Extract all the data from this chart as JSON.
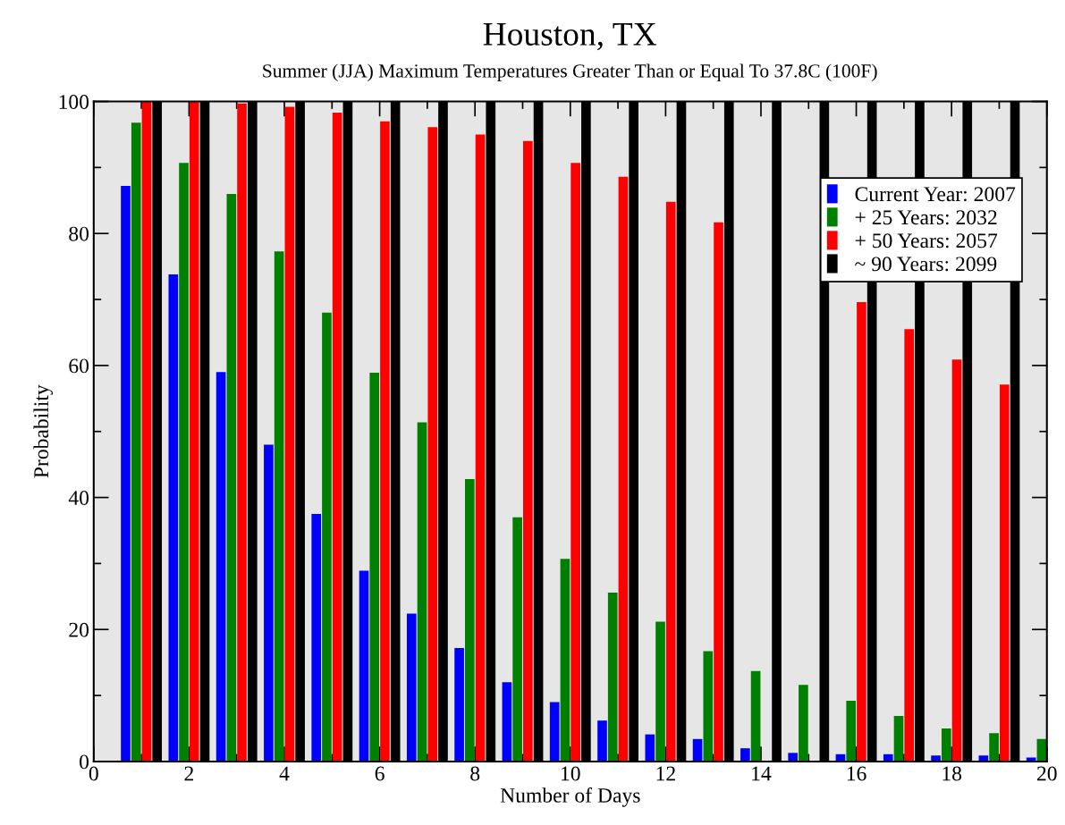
{
  "chart_data": {
    "type": "bar",
    "title": "Houston, TX",
    "subtitle": "Summer (JJA) Maximum Temperatures Greater Than or Equal To 37.8C (100F)",
    "xlabel": "Number of Days",
    "ylabel": "Probability",
    "x": [
      1,
      2,
      3,
      4,
      5,
      6,
      7,
      8,
      9,
      10,
      11,
      12,
      13,
      14,
      15,
      16,
      17,
      18,
      19,
      20
    ],
    "series": [
      {
        "name": "Current Year: 2007",
        "color": "#0000ff",
        "values": [
          87.2,
          73.8,
          59,
          48,
          37.5,
          28.9,
          22.4,
          17.2,
          12,
          9,
          6.2,
          4.1,
          3.4,
          2,
          1.3,
          1.1,
          1.1,
          0.9,
          0.9,
          0.6
        ]
      },
      {
        "name": "+ 25 Years: 2032",
        "color": "#008000",
        "values": [
          96.8,
          90.7,
          86,
          77.3,
          68,
          58.9,
          51.4,
          42.8,
          37,
          30.7,
          25.6,
          21.2,
          16.7,
          13.7,
          11.6,
          9.2,
          6.9,
          5,
          4.3,
          3.4
        ]
      },
      {
        "name": "+ 50 Years: 2057",
        "color": "#ff0000",
        "values": [
          100,
          100,
          99.7,
          99.2,
          98.3,
          97,
          96.1,
          95,
          94,
          90.7,
          88.6,
          84.8,
          81.7,
          null,
          null,
          69.6,
          65.5,
          60.9,
          57.1,
          null
        ]
      },
      {
        "name": "~ 90 Years: 2099",
        "color": "#000000",
        "values": [
          100,
          100,
          100,
          100,
          100,
          100,
          100,
          100,
          100,
          100,
          100,
          100,
          100,
          100,
          100,
          100,
          100,
          100,
          100,
          null
        ]
      }
    ],
    "xlim": [
      0,
      20
    ],
    "xticks": [
      0,
      {
        "value": 1,
        "label": null
      },
      2,
      {
        "value": 3,
        "label": null
      },
      4,
      {
        "value": 5,
        "label": null
      },
      6,
      {
        "value": 7,
        "label": null
      },
      8,
      {
        "value": 9,
        "label": null
      },
      10,
      {
        "value": 11,
        "label": null
      },
      12,
      {
        "value": 13,
        "label": null
      },
      14,
      {
        "value": 15,
        "label": null
      },
      16,
      {
        "value": 17,
        "label": null
      },
      18,
      {
        "value": 19,
        "label": null
      },
      20
    ],
    "ylim": [
      0,
      100
    ],
    "yticks": [
      0,
      {
        "value": 10,
        "label": null
      },
      20,
      {
        "value": 30,
        "label": null
      },
      40,
      {
        "value": 50,
        "label": null
      },
      60,
      {
        "value": 70,
        "label": null
      },
      80,
      {
        "value": 90,
        "label": null
      },
      100
    ],
    "legend": "top right",
    "grid": false
  }
}
